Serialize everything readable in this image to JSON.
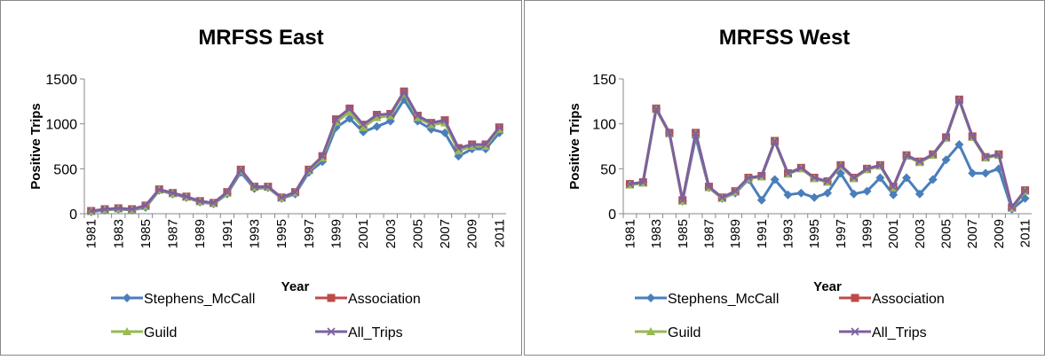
{
  "chart_data": [
    {
      "type": "line",
      "title": "MRFSS East",
      "x_label": "Year",
      "y_label": "Positive  Trips",
      "categories": [
        "1981",
        null,
        "1983",
        null,
        "1985",
        null,
        "1987",
        null,
        "1989",
        null,
        "1991",
        null,
        "1993",
        null,
        "1995",
        null,
        "1997",
        null,
        "1999",
        null,
        "2001",
        null,
        "2003",
        null,
        "2005",
        null,
        "2007",
        null,
        "2009",
        null,
        "2011"
      ],
      "ylim": [
        0,
        1500
      ],
      "yticks": [
        0,
        500,
        1000,
        1500
      ],
      "grid": false,
      "legend": "bottom",
      "series": [
        {
          "name": "Stephens_McCall",
          "color": "#4a7ebb",
          "marker": "diamond",
          "values": [
            20,
            40,
            50,
            40,
            70,
            260,
            220,
            180,
            130,
            110,
            220,
            460,
            280,
            290,
            170,
            220,
            460,
            580,
            960,
            1060,
            910,
            970,
            1030,
            1270,
            1030,
            940,
            900,
            640,
            720,
            720,
            900
          ]
        },
        {
          "name": "Association",
          "color": "#be4b48",
          "marker": "square",
          "values": [
            30,
            50,
            60,
            50,
            90,
            270,
            230,
            190,
            140,
            120,
            240,
            490,
            300,
            300,
            180,
            240,
            490,
            640,
            1050,
            1170,
            990,
            1100,
            1110,
            1360,
            1090,
            1010,
            1040,
            730,
            770,
            770,
            960
          ]
        },
        {
          "name": "Guild",
          "color": "#98b954",
          "marker": "triangle",
          "values": [
            25,
            45,
            55,
            45,
            80,
            265,
            225,
            185,
            135,
            115,
            230,
            480,
            295,
            295,
            175,
            235,
            480,
            620,
            1020,
            1130,
            960,
            1070,
            1090,
            1340,
            1070,
            990,
            1010,
            700,
            750,
            750,
            940
          ]
        },
        {
          "name": "All_Trips",
          "color": "#7d60a0",
          "marker": "x",
          "values": [
            30,
            50,
            60,
            50,
            90,
            270,
            230,
            190,
            140,
            120,
            240,
            490,
            300,
            300,
            180,
            240,
            490,
            640,
            1050,
            1170,
            990,
            1100,
            1110,
            1360,
            1090,
            1010,
            1040,
            730,
            770,
            770,
            960
          ]
        }
      ]
    },
    {
      "type": "line",
      "title": "MRFSS West",
      "x_label": "Year",
      "y_label": "Positive  Trips",
      "categories": [
        "1981",
        null,
        "1983",
        null,
        "1985",
        null,
        "1987",
        null,
        "1989",
        null,
        "1991",
        null,
        "1993",
        null,
        "1995",
        null,
        "1997",
        null,
        "1999",
        null,
        "2001",
        null,
        "2003",
        null,
        "2005",
        null,
        "2007",
        null,
        "2009",
        null,
        "2011"
      ],
      "ylim": [
        0,
        150
      ],
      "yticks": [
        0,
        50,
        100,
        150
      ],
      "grid": false,
      "legend": "bottom",
      "series": [
        {
          "name": "Stephens_McCall",
          "color": "#4a7ebb",
          "marker": "diamond",
          "values": [
            33,
            35,
            117,
            90,
            14,
            85,
            29,
            17,
            23,
            38,
            15,
            38,
            21,
            23,
            18,
            23,
            45,
            22,
            25,
            40,
            21,
            40,
            22,
            38,
            60,
            77,
            45,
            45,
            50,
            5,
            17
          ]
        },
        {
          "name": "Association",
          "color": "#be4b48",
          "marker": "square",
          "values": [
            33,
            35,
            117,
            90,
            15,
            90,
            30,
            18,
            25,
            40,
            42,
            81,
            45,
            51,
            40,
            36,
            54,
            40,
            50,
            54,
            30,
            65,
            58,
            66,
            85,
            127,
            86,
            63,
            66,
            7,
            26
          ]
        },
        {
          "name": "Guild",
          "color": "#98b954",
          "marker": "triangle",
          "values": [
            32,
            34,
            116,
            89,
            14,
            89,
            29,
            17,
            24,
            39,
            41,
            80,
            44,
            50,
            39,
            35,
            53,
            39,
            49,
            53,
            29,
            64,
            57,
            65,
            84,
            126,
            85,
            62,
            65,
            6,
            25
          ]
        },
        {
          "name": "All_Trips",
          "color": "#7d60a0",
          "marker": "x",
          "values": [
            33,
            35,
            117,
            90,
            15,
            90,
            30,
            18,
            25,
            40,
            42,
            81,
            45,
            51,
            40,
            36,
            54,
            40,
            50,
            54,
            30,
            65,
            58,
            66,
            85,
            127,
            86,
            63,
            66,
            7,
            26
          ]
        }
      ]
    }
  ]
}
